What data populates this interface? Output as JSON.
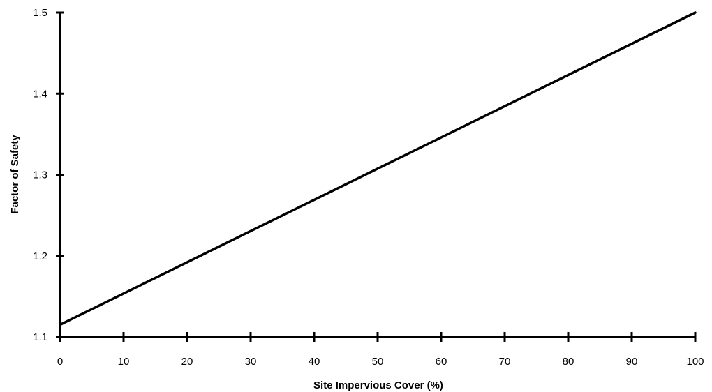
{
  "chart_data": {
    "type": "line",
    "title": "",
    "xlabel": "Site Impervious Cover (%)",
    "ylabel": "Factor of Safety",
    "xlim": [
      0,
      100
    ],
    "ylim": [
      1.1,
      1.5
    ],
    "x_ticks": [
      "0",
      "10",
      "20",
      "30",
      "40",
      "50",
      "60",
      "70",
      "80",
      "90",
      "100"
    ],
    "y_ticks": [
      "1.1",
      "1.2",
      "1.3",
      "1.4",
      "1.5"
    ],
    "grid": false,
    "legend": "none",
    "series": [
      {
        "x": [
          0,
          100
        ],
        "y": [
          1.115,
          1.5
        ],
        "color": "#000000"
      }
    ]
  }
}
